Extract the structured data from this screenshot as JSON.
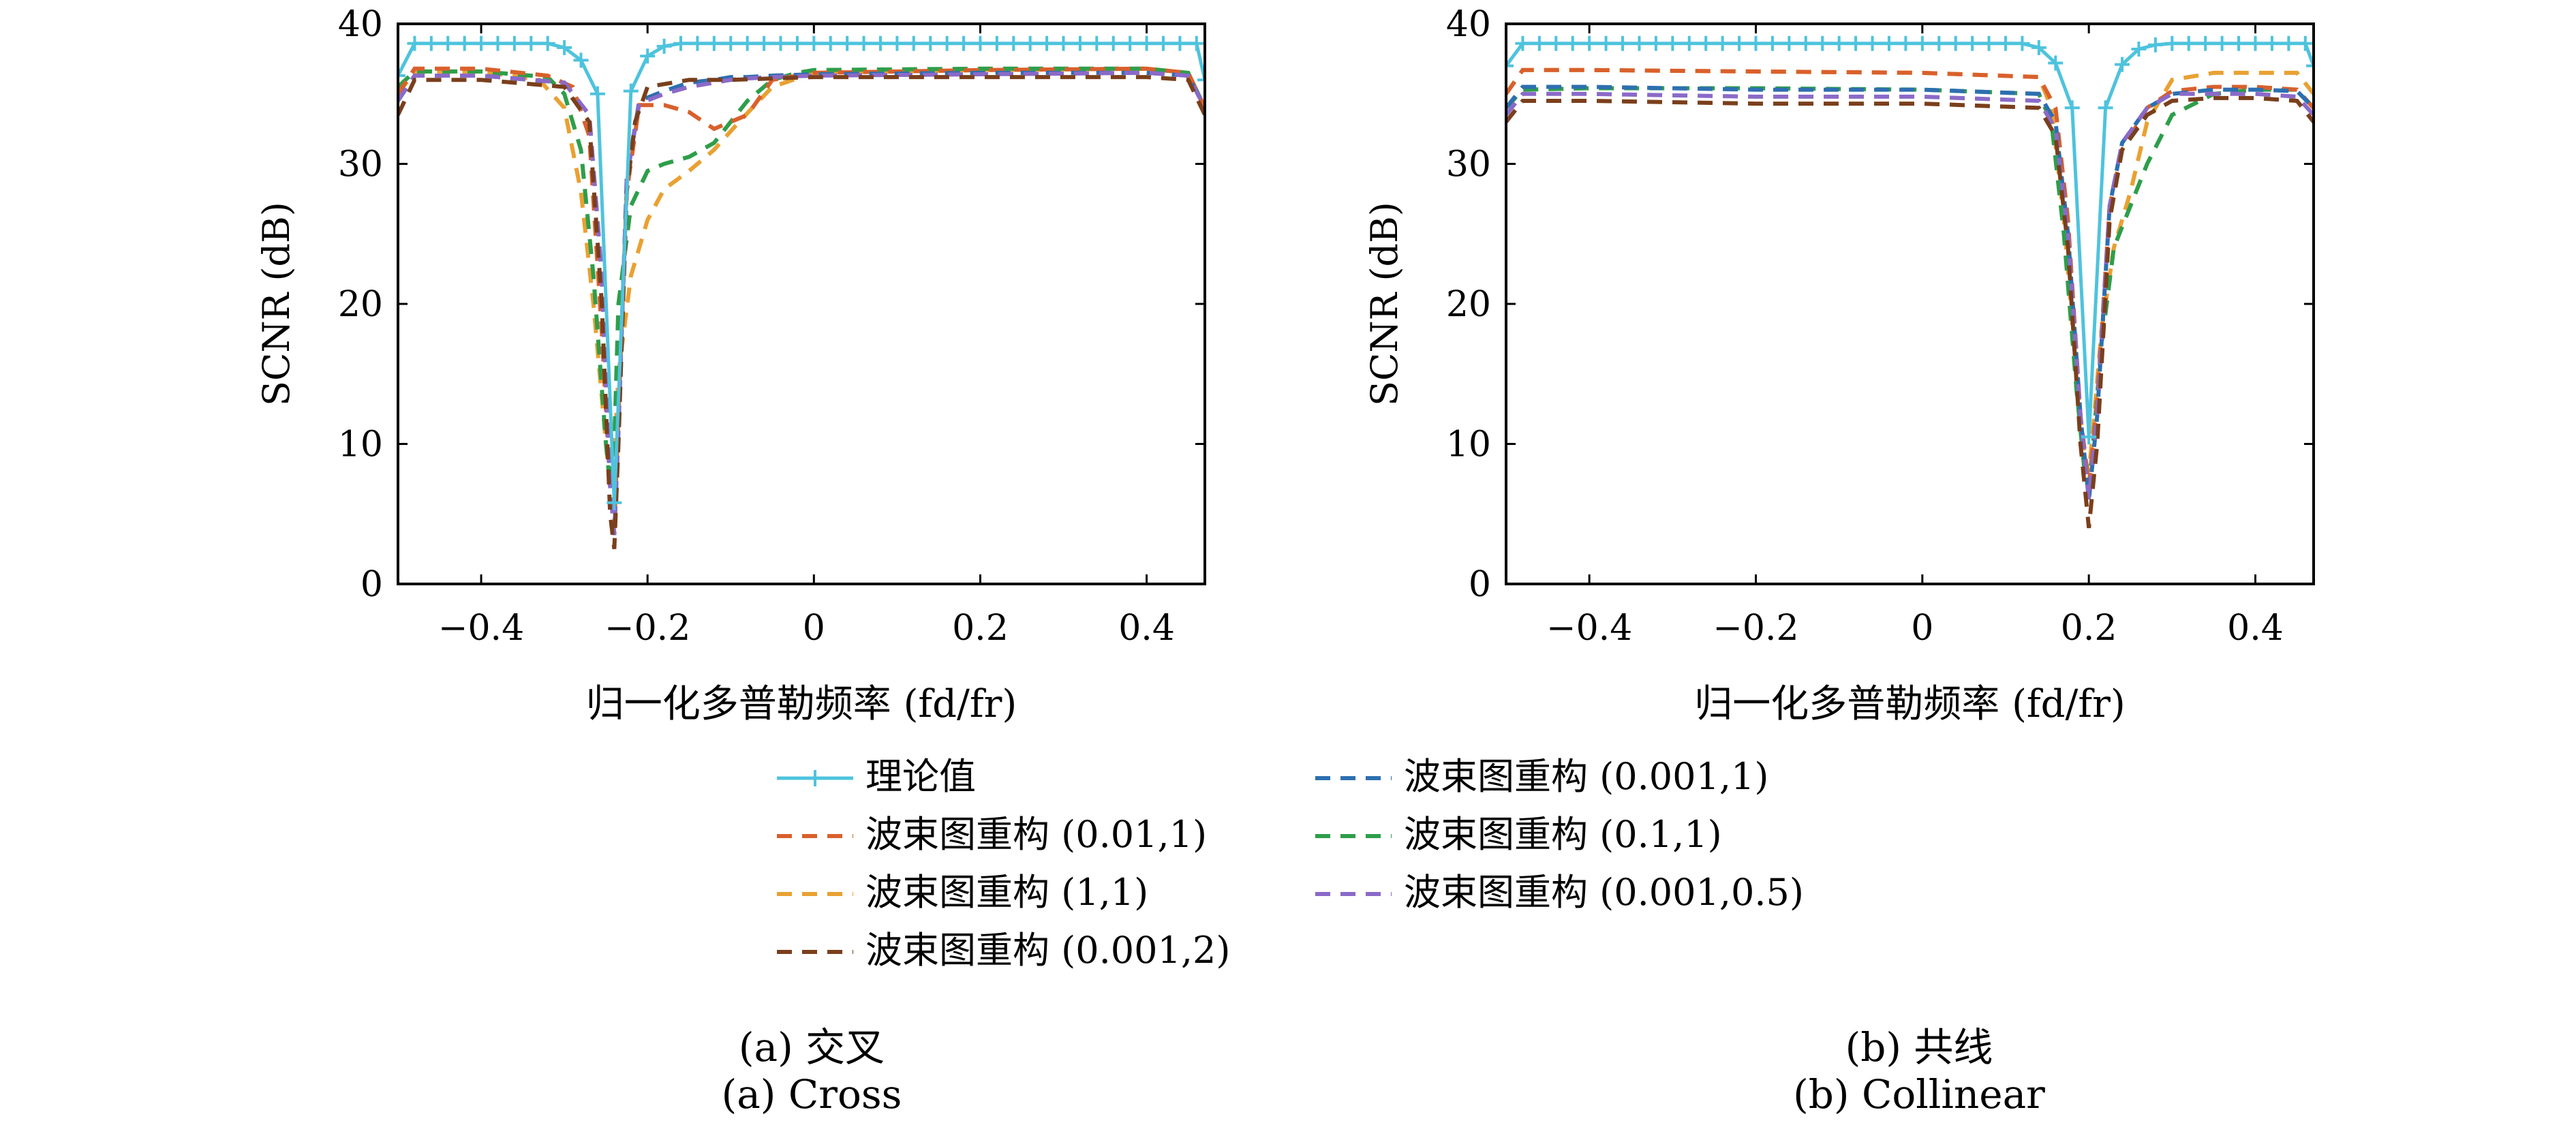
{
  "colors": {
    "theory": "#4ec3dd",
    "s1": "#d9602c",
    "s2": "#e9a132",
    "s3": "#7a3f1c",
    "s4": "#2d6fb0",
    "s5": "#2e9e4a",
    "s6": "#8a6ac8"
  },
  "legend": {
    "theory": "理论值",
    "s1": "波束图重构 (0.01,1)",
    "s2": "波束图重构 (1,1)",
    "s3": "波束图重构 (0.001,2)",
    "s4": "波束图重构 (0.001,1)",
    "s5": "波束图重构 (0.1,1)",
    "s6": "波束图重构 (0.001,0.5)"
  },
  "captions": {
    "a_cn": "(a) 交叉",
    "a_en": "(a) Cross",
    "b_cn": "(b) 共线",
    "b_en": "(b) Collinear"
  },
  "chart_data": [
    {
      "type": "line",
      "id": "a",
      "xlabel": "归一化多普勒频率 (fd/fr)",
      "ylabel": "SCNR (dB)",
      "xlim": [
        -0.5,
        0.47
      ],
      "ylim": [
        0,
        40
      ],
      "xticks": [
        -0.4,
        -0.2,
        0,
        0.2,
        0.4
      ],
      "xtick_labels": [
        "−0.4",
        "−0.2",
        "0",
        "0.2",
        "0.4"
      ],
      "yticks": [
        0,
        10,
        20,
        30,
        40
      ],
      "series": [
        {
          "key": "s1",
          "x": [
            -0.5,
            -0.48,
            -0.4,
            -0.32,
            -0.29,
            -0.27,
            -0.255,
            -0.245,
            -0.24,
            -0.235,
            -0.225,
            -0.21,
            -0.18,
            -0.15,
            -0.12,
            -0.08,
            -0.05,
            0,
            0.2,
            0.4,
            0.45,
            0.47
          ],
          "y": [
            35,
            36.8,
            36.8,
            36.3,
            35.5,
            32,
            18,
            7,
            4,
            12,
            28,
            34.2,
            34.2,
            33.7,
            32.5,
            33.5,
            36,
            36.5,
            36.7,
            36.8,
            36.5,
            34
          ]
        },
        {
          "key": "s2",
          "x": [
            -0.5,
            -0.48,
            -0.4,
            -0.33,
            -0.3,
            -0.28,
            -0.265,
            -0.25,
            -0.245,
            -0.24,
            -0.235,
            -0.22,
            -0.2,
            -0.18,
            -0.15,
            -0.12,
            -0.09,
            -0.05,
            0,
            0.2,
            0.4,
            0.45,
            0.47
          ],
          "y": [
            35,
            36.6,
            36.6,
            36,
            34,
            28,
            20,
            10,
            7,
            9,
            15,
            22,
            26,
            28.2,
            29.5,
            31,
            33,
            35.5,
            36.5,
            36.7,
            36.8,
            36.5,
            34
          ]
        },
        {
          "key": "s3",
          "x": [
            -0.5,
            -0.48,
            -0.4,
            -0.3,
            -0.27,
            -0.255,
            -0.245,
            -0.24,
            -0.235,
            -0.225,
            -0.215,
            -0.2,
            -0.15,
            -0.1,
            0,
            0.2,
            0.4,
            0.45,
            0.47
          ],
          "y": [
            33.5,
            36,
            36,
            35.5,
            33,
            20,
            5,
            2.5,
            10,
            28,
            33,
            35.5,
            36,
            36,
            36.2,
            36.2,
            36.2,
            36,
            33.5
          ]
        },
        {
          "key": "s4",
          "x": [
            -0.5,
            -0.48,
            -0.4,
            -0.3,
            -0.27,
            -0.255,
            -0.245,
            -0.24,
            -0.235,
            -0.225,
            -0.21,
            -0.18,
            -0.15,
            -0.12,
            -0.1,
            -0.08,
            -0.05,
            0,
            0.2,
            0.4,
            0.45,
            0.47
          ],
          "y": [
            34.5,
            36.3,
            36.3,
            35.8,
            33.5,
            22,
            7,
            3.5,
            11,
            29,
            34.5,
            35.2,
            35.8,
            36,
            36.2,
            36.2,
            36.3,
            36.4,
            36.5,
            36.5,
            36.3,
            34
          ]
        },
        {
          "key": "s5",
          "x": [
            -0.5,
            -0.48,
            -0.4,
            -0.32,
            -0.3,
            -0.28,
            -0.265,
            -0.25,
            -0.245,
            -0.24,
            -0.235,
            -0.22,
            -0.2,
            -0.18,
            -0.15,
            -0.12,
            -0.1,
            -0.08,
            -0.05,
            -0.02,
            0,
            0.2,
            0.4,
            0.45,
            0.47
          ],
          "y": [
            35.5,
            36.6,
            36.6,
            36.2,
            35,
            31,
            22,
            10,
            7,
            10,
            20,
            27,
            29.5,
            30,
            30.5,
            31.5,
            33,
            34.5,
            36,
            36.5,
            36.7,
            36.8,
            36.8,
            36.5,
            34
          ]
        },
        {
          "key": "s6",
          "x": [
            -0.5,
            -0.48,
            -0.4,
            -0.3,
            -0.27,
            -0.255,
            -0.245,
            -0.24,
            -0.235,
            -0.225,
            -0.21,
            -0.18,
            -0.15,
            -0.12,
            -0.1,
            -0.08,
            -0.05,
            0,
            0.2,
            0.4,
            0.45,
            0.47
          ],
          "y": [
            34.5,
            36.3,
            36.3,
            35.8,
            33.5,
            22,
            7,
            3.5,
            11,
            29,
            34.3,
            35,
            35.5,
            35.8,
            36,
            36.1,
            36.2,
            36.3,
            36.4,
            36.5,
            36.3,
            34
          ]
        },
        {
          "key": "theory",
          "x": [
            -0.5,
            -0.48,
            -0.46,
            -0.44,
            -0.42,
            -0.4,
            -0.38,
            -0.36,
            -0.34,
            -0.32,
            -0.3,
            -0.28,
            -0.26,
            -0.24,
            -0.22,
            -0.2,
            -0.18,
            -0.16,
            -0.14,
            -0.12,
            -0.1,
            -0.08,
            -0.06,
            -0.04,
            -0.02,
            0,
            0.02,
            0.04,
            0.06,
            0.08,
            0.1,
            0.12,
            0.14,
            0.16,
            0.18,
            0.2,
            0.22,
            0.24,
            0.26,
            0.28,
            0.3,
            0.32,
            0.34,
            0.36,
            0.38,
            0.4,
            0.42,
            0.44,
            0.46,
            0.47
          ],
          "y": [
            36.3,
            38.6,
            38.6,
            38.6,
            38.6,
            38.6,
            38.6,
            38.6,
            38.6,
            38.6,
            38.3,
            37.4,
            35,
            5.8,
            35.2,
            37.7,
            38.4,
            38.6,
            38.6,
            38.6,
            38.6,
            38.6,
            38.6,
            38.6,
            38.6,
            38.6,
            38.6,
            38.6,
            38.6,
            38.6,
            38.6,
            38.6,
            38.6,
            38.6,
            38.6,
            38.6,
            38.6,
            38.6,
            38.6,
            38.6,
            38.6,
            38.6,
            38.6,
            38.6,
            38.6,
            38.6,
            38.6,
            38.6,
            38.6,
            36
          ]
        }
      ]
    },
    {
      "type": "line",
      "id": "b",
      "xlabel": "归一化多普勒频率 (fd/fr)",
      "ylabel": "SCNR (dB)",
      "xlim": [
        -0.5,
        0.47
      ],
      "ylim": [
        0,
        40
      ],
      "xticks": [
        -0.4,
        -0.2,
        0,
        0.2,
        0.4
      ],
      "xtick_labels": [
        "−0.4",
        "−0.2",
        "0",
        "0.2",
        "0.4"
      ],
      "yticks": [
        0,
        10,
        20,
        30,
        40
      ],
      "series": [
        {
          "key": "s1",
          "x": [
            -0.5,
            -0.48,
            -0.4,
            -0.2,
            0,
            0.14,
            0.16,
            0.175,
            0.19,
            0.2,
            0.21,
            0.225,
            0.24,
            0.27,
            0.3,
            0.35,
            0.4,
            0.45,
            0.47
          ],
          "y": [
            35,
            36.7,
            36.7,
            36.6,
            36.5,
            36.2,
            34,
            26,
            12,
            7,
            13,
            27,
            31,
            34,
            35.2,
            35.5,
            35.5,
            35.3,
            34
          ]
        },
        {
          "key": "s2",
          "x": [
            -0.5,
            -0.48,
            -0.4,
            -0.2,
            0,
            0.14,
            0.155,
            0.17,
            0.185,
            0.195,
            0.2,
            0.205,
            0.215,
            0.23,
            0.25,
            0.27,
            0.3,
            0.35,
            0.4,
            0.45,
            0.47
          ],
          "y": [
            35,
            36.7,
            36.7,
            36.6,
            36.5,
            36.2,
            34,
            26,
            15,
            9,
            8,
            11,
            18,
            24,
            28,
            33,
            36,
            36.5,
            36.5,
            36.5,
            35
          ]
        },
        {
          "key": "s3",
          "x": [
            -0.5,
            -0.48,
            -0.4,
            -0.2,
            0,
            0.14,
            0.16,
            0.175,
            0.19,
            0.2,
            0.21,
            0.225,
            0.24,
            0.27,
            0.3,
            0.35,
            0.4,
            0.45,
            0.47
          ],
          "y": [
            33,
            34.5,
            34.5,
            34.3,
            34.3,
            34,
            32,
            24,
            10,
            4,
            10,
            26,
            31,
            33.5,
            34.5,
            34.7,
            34.7,
            34.5,
            33
          ]
        },
        {
          "key": "s4",
          "x": [
            -0.5,
            -0.48,
            -0.4,
            -0.2,
            0,
            0.14,
            0.16,
            0.175,
            0.19,
            0.2,
            0.21,
            0.225,
            0.24,
            0.27,
            0.3,
            0.35,
            0.4,
            0.45,
            0.47
          ],
          "y": [
            34,
            35.5,
            35.5,
            35.3,
            35.3,
            35,
            33,
            25,
            12,
            6,
            12,
            27,
            31.5,
            34,
            35,
            35.3,
            35.3,
            35.2,
            34
          ]
        },
        {
          "key": "s5",
          "x": [
            -0.5,
            -0.48,
            -0.4,
            -0.2,
            0,
            0.14,
            0.155,
            0.17,
            0.185,
            0.195,
            0.2,
            0.205,
            0.215,
            0.23,
            0.25,
            0.27,
            0.3,
            0.35,
            0.4,
            0.45,
            0.47
          ],
          "y": [
            34,
            35.3,
            35.4,
            35.4,
            35.3,
            35,
            33,
            25,
            14,
            8,
            7,
            10,
            17,
            24,
            27,
            30,
            33.5,
            35,
            35.3,
            35.3,
            34
          ]
        },
        {
          "key": "s6",
          "x": [
            -0.5,
            -0.48,
            -0.4,
            -0.2,
            0,
            0.14,
            0.16,
            0.175,
            0.19,
            0.2,
            0.21,
            0.225,
            0.24,
            0.27,
            0.3,
            0.35,
            0.4,
            0.45,
            0.47
          ],
          "y": [
            33.5,
            35,
            35,
            34.8,
            34.8,
            34.5,
            32.5,
            25,
            12,
            6,
            12,
            27,
            31.5,
            34,
            35,
            35,
            35,
            34.8,
            33.5
          ]
        },
        {
          "key": "theory",
          "x": [
            -0.5,
            -0.48,
            -0.46,
            -0.44,
            -0.42,
            -0.4,
            -0.38,
            -0.36,
            -0.34,
            -0.32,
            -0.3,
            -0.28,
            -0.26,
            -0.24,
            -0.22,
            -0.2,
            -0.18,
            -0.16,
            -0.14,
            -0.12,
            -0.1,
            -0.08,
            -0.06,
            -0.04,
            -0.02,
            0,
            0.02,
            0.04,
            0.06,
            0.08,
            0.1,
            0.12,
            0.14,
            0.16,
            0.18,
            0.2,
            0.22,
            0.24,
            0.26,
            0.28,
            0.3,
            0.32,
            0.34,
            0.36,
            0.38,
            0.4,
            0.42,
            0.44,
            0.46,
            0.47
          ],
          "y": [
            37,
            38.6,
            38.6,
            38.6,
            38.6,
            38.6,
            38.6,
            38.6,
            38.6,
            38.6,
            38.6,
            38.6,
            38.6,
            38.6,
            38.6,
            38.6,
            38.6,
            38.6,
            38.6,
            38.6,
            38.6,
            38.6,
            38.6,
            38.6,
            38.6,
            38.6,
            38.6,
            38.6,
            38.6,
            38.6,
            38.6,
            38.6,
            38.3,
            37.2,
            34,
            10.5,
            34,
            37.1,
            38.2,
            38.5,
            38.6,
            38.6,
            38.6,
            38.6,
            38.6,
            38.6,
            38.6,
            38.6,
            38.6,
            37
          ]
        }
      ]
    }
  ]
}
